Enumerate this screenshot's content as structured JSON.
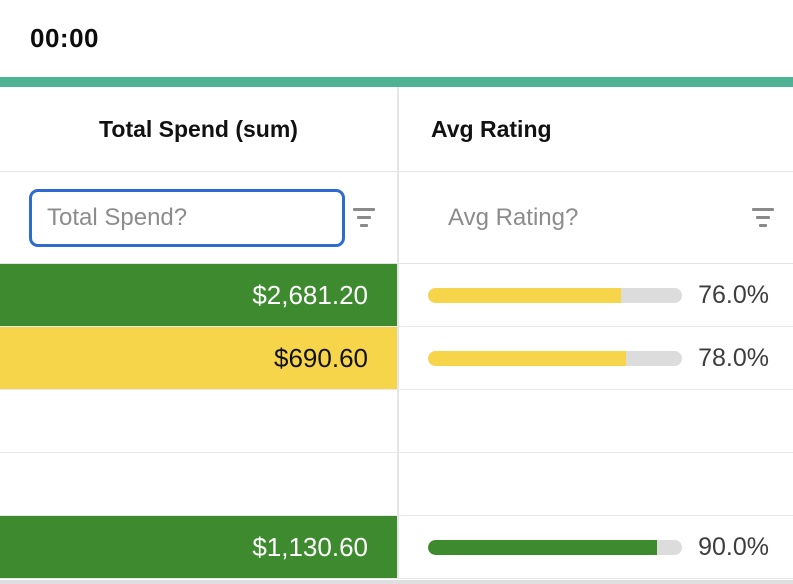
{
  "header": {
    "timer": "00:00"
  },
  "columns": [
    {
      "title": "Total Spend (sum)",
      "filter_placeholder": "Total Spend?"
    },
    {
      "title": "Avg Rating",
      "filter_placeholder": "Avg Rating?"
    }
  ],
  "rows": [
    {
      "spend": "$2,681.20",
      "spend_fill": "green",
      "rating_pct": 76.0,
      "rating_label": "76.0%",
      "rating_color": "yellow"
    },
    {
      "spend": "$690.60",
      "spend_fill": "yellow",
      "rating_pct": 78.0,
      "rating_label": "78.0%",
      "rating_color": "yellow"
    },
    {
      "spend": "",
      "spend_fill": "none",
      "rating_pct": null,
      "rating_label": "",
      "rating_color": null
    },
    {
      "spend": "",
      "spend_fill": "none",
      "rating_pct": null,
      "rating_label": "",
      "rating_color": null
    },
    {
      "spend": "$1,130.60",
      "spend_fill": "green",
      "rating_pct": 90.0,
      "rating_label": "90.0%",
      "rating_color": "green"
    }
  ],
  "colors": {
    "accent_teal": "#4fb293",
    "green": "#3d8b2e",
    "yellow": "#f7d54b",
    "bar_track": "#dcdcdc",
    "focus_blue": "#2e6bd1",
    "text_on_green": "#ffffff",
    "text_on_yellow": "#111111"
  },
  "chart_data": {
    "type": "table",
    "columns": [
      "Total Spend (sum)",
      "Avg Rating"
    ],
    "spend_values": [
      2681.2,
      690.6,
      null,
      null,
      1130.6
    ],
    "rating_values_pct": [
      76.0,
      78.0,
      null,
      null,
      90.0
    ]
  }
}
